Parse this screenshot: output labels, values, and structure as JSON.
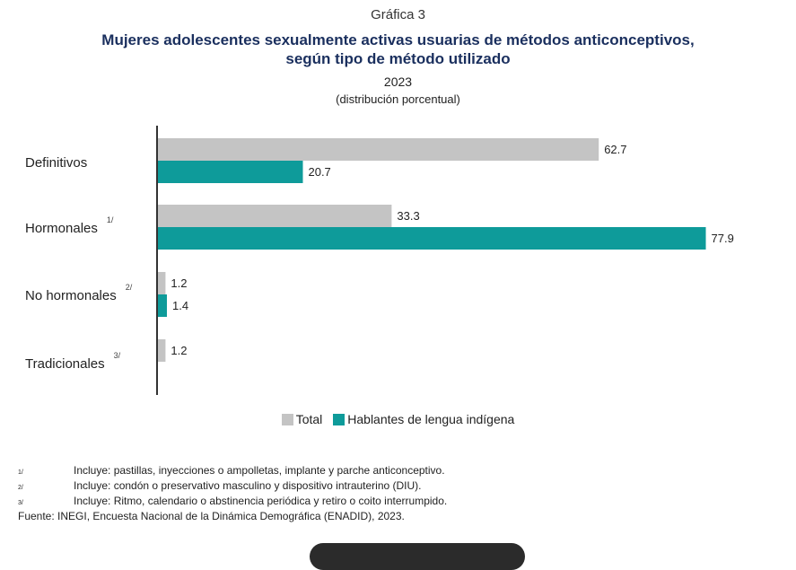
{
  "header": {
    "graph_number": "Gráfica 3",
    "title_line1": "Mujeres adolescentes sexualmente activas usuarias de métodos anticonceptivos,",
    "title_line2": "según tipo de método utilizado",
    "year": "2023",
    "unit": "(distribución porcentual)"
  },
  "colors": {
    "total": "#c4c4c4",
    "indigenous": "#0e9b9a",
    "axis": "#333333",
    "title": "#1a2f5e"
  },
  "chart_data": {
    "type": "bar",
    "orientation": "horizontal",
    "categories": [
      "Definitivos",
      "Hormonales",
      "No hormonales",
      "Tradicionales"
    ],
    "category_notes": [
      "",
      "1/",
      "2/",
      "3/"
    ],
    "series": [
      {
        "name": "Total",
        "values": [
          62.7,
          33.3,
          1.2,
          1.2
        ],
        "labels": [
          "62.7",
          "33.3",
          "1.2",
          "1.2"
        ]
      },
      {
        "name": "Hablantes de lengua indígena",
        "values": [
          20.7,
          77.9,
          1.4,
          null
        ],
        "labels": [
          "20.7",
          "77.9",
          "1.4",
          ""
        ]
      }
    ],
    "xlim": [
      0,
      100
    ],
    "grid": false,
    "legend_position": "bottom"
  },
  "legend": {
    "items": [
      "Total",
      "Hablantes de lengua indígena"
    ]
  },
  "notes": [
    {
      "mark": "1/",
      "text": "Incluye: pastillas, inyecciones o ampolletas, implante y parche anticonceptivo."
    },
    {
      "mark": "2/",
      "text": "Incluye: condón o preservativo masculino y dispositivo intrauterino (DIU)."
    },
    {
      "mark": "3/",
      "text": "Incluye: Ritmo, calendario o abstinencia periódica y retiro o coito interrumpido."
    }
  ],
  "source": "Fuente: INEGI, Encuesta Nacional de la Dinámica Demográfica (ENADID), 2023."
}
